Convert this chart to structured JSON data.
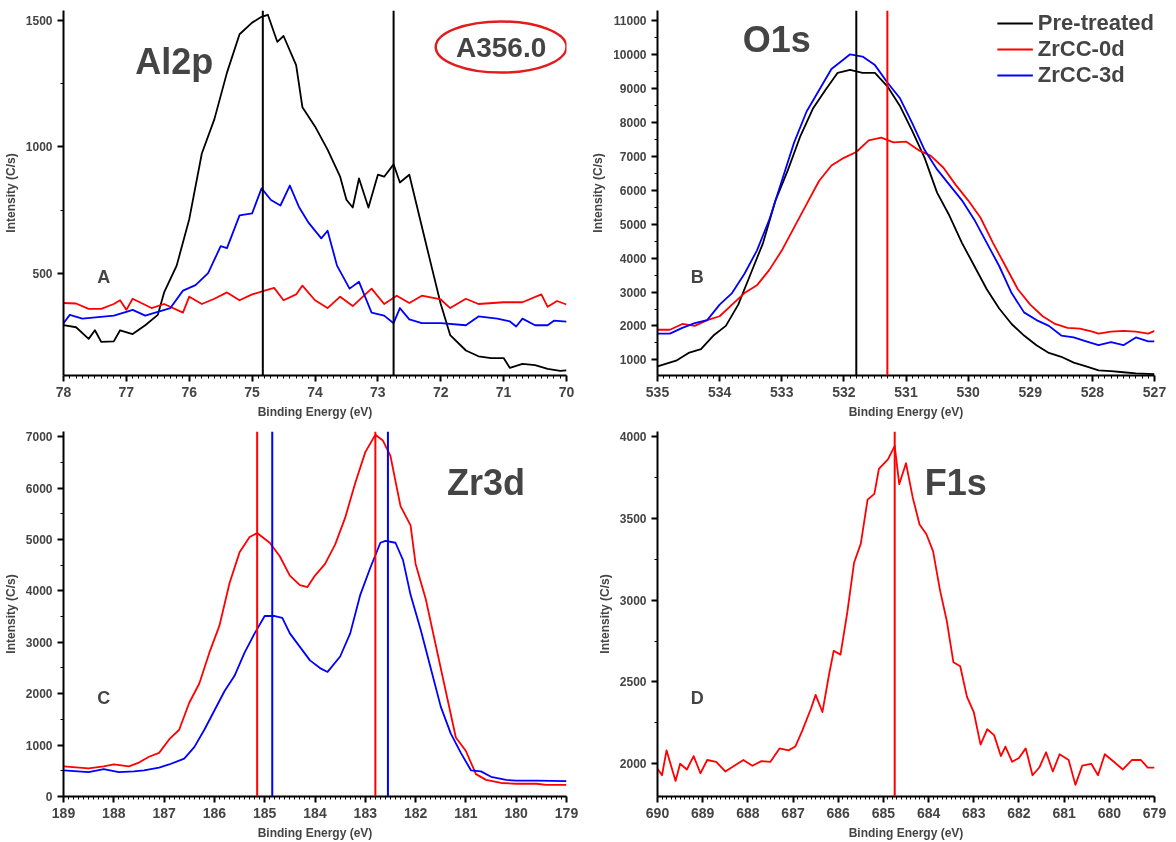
{
  "chart_data": [
    {
      "type": "line",
      "title": "Al2p",
      "xlabel": "Binding Energy (eV)",
      "ylabel": "Intensity (C/s)",
      "annotations": [
        "A",
        "A356.0"
      ],
      "xlim": [
        78,
        70
      ],
      "ylim": [
        95,
        1540
      ],
      "xticks": [
        78,
        77,
        76,
        75,
        74,
        73,
        72,
        71,
        70
      ],
      "yticks": [
        500,
        1000,
        1500
      ],
      "grid": false,
      "legend": false,
      "series": [
        {
          "color": "#000000",
          "x": [
            78,
            77.8,
            77.6,
            77.5,
            77.4,
            77.2,
            77.1,
            76.9,
            76.7,
            76.5,
            76.4,
            76.2,
            76.0,
            75.8,
            75.6,
            75.4,
            75.2,
            75.0,
            74.85,
            74.75,
            74.6,
            74.5,
            74.3,
            74.2,
            74.0,
            73.8,
            73.6,
            73.5,
            73.4,
            73.3,
            73.15,
            73.0,
            72.9,
            72.75,
            72.65,
            72.5,
            72.3,
            72.15,
            72.0,
            71.85,
            71.6,
            71.4,
            71.2,
            71.0,
            70.9,
            70.7,
            70.5,
            70.3,
            70.1,
            70.0
          ],
          "values": [
            294,
            286,
            240,
            274,
            228,
            230,
            274,
            259,
            294,
            335,
            424,
            530,
            714,
            974,
            1110,
            1294,
            1446,
            1492,
            1515,
            1523,
            1416,
            1439,
            1324,
            1157,
            1081,
            989,
            882,
            791,
            760,
            875,
            760,
            890,
            882,
            931,
            859,
            890,
            684,
            530,
            378,
            255,
            194,
            171,
            164,
            164,
            125,
            141,
            136,
            121,
            113,
            115
          ]
        },
        {
          "color": "#ff0000",
          "x": [
            78,
            77.8,
            77.6,
            77.4,
            77.2,
            77.1,
            77.0,
            76.9,
            76.6,
            76.4,
            76.1,
            76.0,
            75.8,
            75.6,
            75.4,
            75.2,
            75.0,
            74.8,
            74.65,
            74.5,
            74.3,
            74.2,
            74.0,
            73.8,
            73.6,
            73.4,
            73.2,
            73.1,
            72.9,
            72.7,
            72.5,
            72.3,
            72.0,
            71.85,
            71.6,
            71.4,
            71.0,
            70.7,
            70.4,
            70.3,
            70.15,
            70.0
          ],
          "values": [
            382,
            380,
            359,
            359,
            378,
            393,
            355,
            399,
            362,
            378,
            344,
            407,
            378,
            399,
            424,
            393,
            416,
            431,
            442,
            393,
            416,
            451,
            393,
            362,
            407,
            370,
            416,
            439,
            378,
            411,
            382,
            411,
            396,
            362,
            399,
            378,
            385,
            385,
            416,
            367,
            390,
            376
          ]
        },
        {
          "color": "#0000ff",
          "x": [
            78,
            77.9,
            77.7,
            77.2,
            77.0,
            76.9,
            76.7,
            76.5,
            76.3,
            76.1,
            75.9,
            75.7,
            75.5,
            75.4,
            75.2,
            75.0,
            74.85,
            74.7,
            74.55,
            74.4,
            74.25,
            74.1,
            73.9,
            73.8,
            73.65,
            73.45,
            73.3,
            73.1,
            72.9,
            72.75,
            72.65,
            72.5,
            72.3,
            72.0,
            71.6,
            71.4,
            71.1,
            70.9,
            70.8,
            70.7,
            70.5,
            70.3,
            70.2,
            70.0
          ],
          "values": [
            302,
            335,
            320,
            332,
            347,
            355,
            332,
            347,
            362,
            431,
            453,
            500,
            607,
            599,
            729,
            737,
            836,
            790,
            768,
            847,
            760,
            699,
            638,
            668,
            530,
            439,
            466,
            344,
            332,
            302,
            362,
            317,
            302,
            302,
            294,
            329,
            320,
            309,
            289,
            320,
            294,
            294,
            312,
            308
          ]
        }
      ],
      "ref_lines": [
        {
          "axis": "x",
          "value": 74.83,
          "color": "#000000"
        },
        {
          "axis": "x",
          "value": 72.75,
          "color": "#000000"
        }
      ]
    },
    {
      "type": "line",
      "title": "O1s",
      "xlabel": "Binding Energy (eV)",
      "ylabel": "Intensity (C/s)",
      "annotations": [
        "B"
      ],
      "xlim": [
        535,
        527
      ],
      "ylim": [
        540,
        11300
      ],
      "xticks": [
        535,
        534,
        533,
        532,
        531,
        530,
        529,
        528,
        527
      ],
      "yticks": [
        1000,
        2000,
        3000,
        4000,
        5000,
        6000,
        7000,
        8000,
        9000,
        10000,
        11000
      ],
      "grid": false,
      "legend": "top right",
      "series": [
        {
          "name": "Pre-treated",
          "color": "#000000",
          "x": [
            535,
            534.7,
            534.5,
            534.3,
            534.1,
            533.9,
            533.7,
            533.5,
            533.3,
            533.1,
            532.9,
            532.7,
            532.5,
            532.3,
            532.1,
            531.9,
            531.7,
            531.5,
            531.3,
            531.1,
            530.9,
            530.7,
            530.5,
            530.3,
            530.1,
            529.9,
            529.7,
            529.5,
            529.3,
            529.1,
            528.9,
            528.7,
            528.5,
            528.3,
            528.1,
            527.9,
            527.7,
            527.5,
            527.3,
            527.0
          ],
          "values": [
            806,
            977,
            1205,
            1319,
            1718,
            2002,
            2629,
            3540,
            4451,
            5704,
            6600,
            7600,
            8400,
            8950,
            9462,
            9553,
            9462,
            9462,
            9064,
            8494,
            7754,
            6957,
            5932,
            5248,
            4451,
            3768,
            3084,
            2515,
            2059,
            1718,
            1433,
            1205,
            1091,
            920,
            806,
            692,
            670,
            636,
            601,
            579
          ]
        },
        {
          "name": "ZrCC-0d",
          "color": "#ff0000",
          "x": [
            535,
            534.8,
            534.6,
            534.4,
            534.2,
            534.0,
            533.8,
            533.6,
            533.4,
            533.2,
            533.0,
            532.8,
            532.6,
            532.4,
            532.2,
            532.0,
            531.8,
            531.6,
            531.4,
            531.2,
            531.0,
            530.8,
            530.6,
            530.4,
            530.2,
            530.0,
            529.8,
            529.6,
            529.4,
            529.2,
            529.0,
            528.8,
            528.6,
            528.4,
            528.2,
            528.0,
            527.9,
            527.7,
            527.5,
            527.3,
            527.1,
            527.0
          ],
          "values": [
            1888,
            1888,
            2059,
            2002,
            2173,
            2287,
            2629,
            2970,
            3198,
            3654,
            4223,
            4907,
            5590,
            6273,
            6729,
            6957,
            7128,
            7470,
            7550,
            7412,
            7435,
            7185,
            7014,
            6672,
            6159,
            5704,
            5191,
            4451,
            3768,
            3084,
            2629,
            2287,
            2059,
            1945,
            1923,
            1831,
            1774,
            1831,
            1854,
            1831,
            1774,
            1854
          ]
        },
        {
          "name": "ZrCC-3d",
          "color": "#0000ff",
          "x": [
            535,
            534.8,
            534.6,
            534.4,
            534.2,
            534.0,
            533.8,
            533.6,
            533.4,
            533.2,
            533.0,
            532.8,
            532.6,
            532.4,
            532.2,
            532.0,
            531.9,
            531.7,
            531.5,
            531.3,
            531.1,
            530.9,
            530.7,
            530.5,
            530.3,
            530.1,
            529.9,
            529.7,
            529.5,
            529.3,
            529.1,
            528.9,
            528.7,
            528.5,
            528.3,
            528.1,
            527.9,
            527.7,
            527.5,
            527.3,
            527.1,
            527.0
          ],
          "values": [
            1774,
            1774,
            1945,
            2082,
            2173,
            2629,
            2970,
            3540,
            4223,
            5134,
            6273,
            7412,
            8323,
            8949,
            9576,
            9861,
            10009,
            9941,
            9690,
            9178,
            8722,
            7982,
            7185,
            6615,
            6159,
            5704,
            5134,
            4451,
            3768,
            2970,
            2401,
            2173,
            2002,
            1718,
            1661,
            1547,
            1433,
            1524,
            1433,
            1661,
            1547,
            1547
          ]
        }
      ],
      "ref_lines": [
        {
          "axis": "x",
          "value": 531.8,
          "color": "#000000"
        },
        {
          "axis": "x",
          "value": 531.3,
          "color": "#ff0000"
        }
      ]
    },
    {
      "type": "line",
      "title": "Zr3d",
      "xlabel": "Binding Energy (eV)",
      "ylabel": "Intensity (C/s)",
      "annotations": [
        "C"
      ],
      "xlim": [
        189,
        179
      ],
      "ylim": [
        0,
        7100
      ],
      "xticks": [
        189,
        188,
        187,
        186,
        185,
        184,
        183,
        182,
        181,
        180,
        179
      ],
      "yticks": [
        0,
        1000,
        2000,
        3000,
        4000,
        5000,
        6000,
        7000
      ],
      "grid": false,
      "legend": false,
      "series": [
        {
          "color": "#ff0000",
          "x": [
            189,
            188.5,
            188.2,
            188.0,
            187.7,
            187.5,
            187.3,
            187.1,
            186.9,
            186.7,
            186.5,
            186.3,
            186.1,
            185.9,
            185.7,
            185.5,
            185.3,
            185.15,
            184.9,
            184.7,
            184.5,
            184.3,
            184.15,
            184.0,
            183.8,
            183.6,
            183.4,
            183.2,
            183.0,
            182.8,
            182.65,
            182.5,
            182.3,
            182.1,
            182.0,
            181.8,
            181.6,
            181.4,
            181.2,
            181.0,
            180.8,
            180.6,
            180.3,
            180.0,
            179.6,
            179.4,
            179.0
          ],
          "values": [
            585,
            548,
            585,
            623,
            585,
            660,
            773,
            848,
            1110,
            1298,
            1823,
            2198,
            2798,
            3323,
            4148,
            4749,
            5049,
            5124,
            4936,
            4674,
            4298,
            4111,
            4073,
            4298,
            4524,
            4899,
            5424,
            6099,
            6699,
            7036,
            6924,
            6624,
            5649,
            5274,
            4524,
            3848,
            2948,
            2048,
            1148,
            885,
            435,
            323,
            263,
            248,
            248,
            225,
            225
          ]
        },
        {
          "color": "#0000ff",
          "x": [
            189,
            188.5,
            188.2,
            187.9,
            187.6,
            187.4,
            187.1,
            186.9,
            186.6,
            186.4,
            186.2,
            186.0,
            185.8,
            185.6,
            185.4,
            185.2,
            185.0,
            184.8,
            184.65,
            184.5,
            184.3,
            184.1,
            183.9,
            183.75,
            183.5,
            183.3,
            183.1,
            182.9,
            182.7,
            182.6,
            182.4,
            182.25,
            182.1,
            181.9,
            181.7,
            181.5,
            181.3,
            181.1,
            180.9,
            180.7,
            180.5,
            180.2,
            180.0,
            179.6,
            179.0
          ],
          "values": [
            510,
            473,
            533,
            473,
            488,
            510,
            563,
            623,
            735,
            960,
            1298,
            1673,
            2048,
            2348,
            2798,
            3173,
            3511,
            3511,
            3473,
            3173,
            2911,
            2648,
            2498,
            2423,
            2723,
            3173,
            3923,
            4449,
            4936,
            4974,
            4936,
            4599,
            3923,
            3248,
            2498,
            1748,
            1223,
            848,
            510,
            488,
            383,
            323,
            308,
            308,
            300
          ]
        }
      ],
      "ref_lines": [
        {
          "axis": "x",
          "value": 185.15,
          "color": "#ff0000"
        },
        {
          "axis": "x",
          "value": 184.85,
          "color": "#0000ff"
        },
        {
          "axis": "x",
          "value": 182.8,
          "color": "#ff0000"
        },
        {
          "axis": "x",
          "value": 182.55,
          "color": "#0000ff"
        }
      ]
    },
    {
      "type": "line",
      "title": "F1s",
      "xlabel": "Binding Energy (eV)",
      "ylabel": "Intensity (C/s)",
      "annotations": [
        "D"
      ],
      "xlim": [
        690,
        679
      ],
      "ylim": [
        1800,
        4030
      ],
      "xticks": [
        690,
        689,
        688,
        687,
        686,
        685,
        684,
        683,
        682,
        681,
        680,
        679
      ],
      "yticks": [
        2000,
        2500,
        3000,
        3500,
        4000
      ],
      "grid": false,
      "legend": false,
      "series": [
        {
          "color": "#ff0000",
          "x": [
            690.0,
            689.9,
            689.8,
            689.6,
            689.5,
            689.35,
            689.2,
            689.05,
            688.9,
            688.7,
            688.5,
            688.3,
            688.1,
            687.9,
            687.7,
            687.5,
            687.3,
            687.1,
            686.95,
            686.8,
            686.6,
            686.5,
            686.35,
            686.2,
            686.1,
            685.95,
            685.8,
            685.65,
            685.5,
            685.35,
            685.2,
            685.1,
            684.9,
            684.75,
            684.65,
            684.5,
            684.35,
            684.2,
            684.05,
            683.9,
            683.75,
            683.6,
            683.45,
            683.3,
            683.15,
            683.0,
            682.85,
            682.7,
            682.55,
            682.4,
            682.3,
            682.15,
            682.0,
            681.85,
            681.7,
            681.55,
            681.4,
            681.25,
            681.1,
            680.9,
            680.75,
            680.6,
            680.4,
            680.25,
            680.1,
            679.9,
            679.7,
            679.5,
            679.3,
            679.15,
            679.0
          ],
          "values": [
            1970,
            1930,
            2082,
            1895,
            2000,
            1965,
            2047,
            1942,
            2023,
            2012,
            1953,
            1988,
            2023,
            1988,
            2016,
            2012,
            2094,
            2082,
            2105,
            2199,
            2339,
            2421,
            2316,
            2550,
            2690,
            2667,
            2924,
            3228,
            3345,
            3614,
            3649,
            3801,
            3860,
            3942,
            3708,
            3836,
            3626,
            3462,
            3404,
            3298,
            3064,
            2877,
            2620,
            2596,
            2409,
            2316,
            2117,
            2211,
            2175,
            2047,
            2105,
            2012,
            2035,
            2094,
            1930,
            1977,
            2070,
            1953,
            2058,
            2023,
            1871,
            1988,
            2000,
            1930,
            2058,
            2012,
            1965,
            2023,
            2023,
            1977,
            1977
          ]
        }
      ],
      "ref_lines": [
        {
          "axis": "x",
          "value": 684.75,
          "color": "#ff0000"
        }
      ]
    }
  ]
}
